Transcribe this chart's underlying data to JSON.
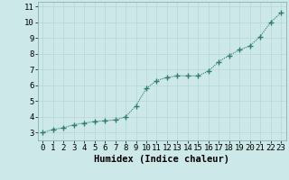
{
  "xlabel": "Humidex (Indice chaleur)",
  "x": [
    0,
    1,
    2,
    3,
    4,
    5,
    6,
    7,
    8,
    9,
    10,
    11,
    12,
    13,
    14,
    15,
    16,
    17,
    18,
    19,
    20,
    21,
    22,
    23
  ],
  "y": [
    3.0,
    3.2,
    3.3,
    3.5,
    3.6,
    3.7,
    3.75,
    3.8,
    4.0,
    4.7,
    5.8,
    6.3,
    6.5,
    6.6,
    6.6,
    6.6,
    6.9,
    7.5,
    7.9,
    8.25,
    8.5,
    9.1,
    10.0,
    10.6
  ],
  "line_color": "#2e7d6e",
  "marker": "+",
  "marker_size": 4,
  "bg_color": "#cce8e8",
  "grid_color": "#b8d4d4",
  "axis_bg": "#cce8e8",
  "xlim": [
    -0.5,
    23.5
  ],
  "ylim": [
    2.5,
    11.3
  ],
  "yticks": [
    3,
    4,
    5,
    6,
    7,
    8,
    9,
    10,
    11
  ],
  "xticks": [
    0,
    1,
    2,
    3,
    4,
    5,
    6,
    7,
    8,
    9,
    10,
    11,
    12,
    13,
    14,
    15,
    16,
    17,
    18,
    19,
    20,
    21,
    22,
    23
  ],
  "xlabel_fontsize": 7.5,
  "tick_fontsize": 6.5,
  "line_width": 0.8,
  "border_color": "#8ab0b0"
}
